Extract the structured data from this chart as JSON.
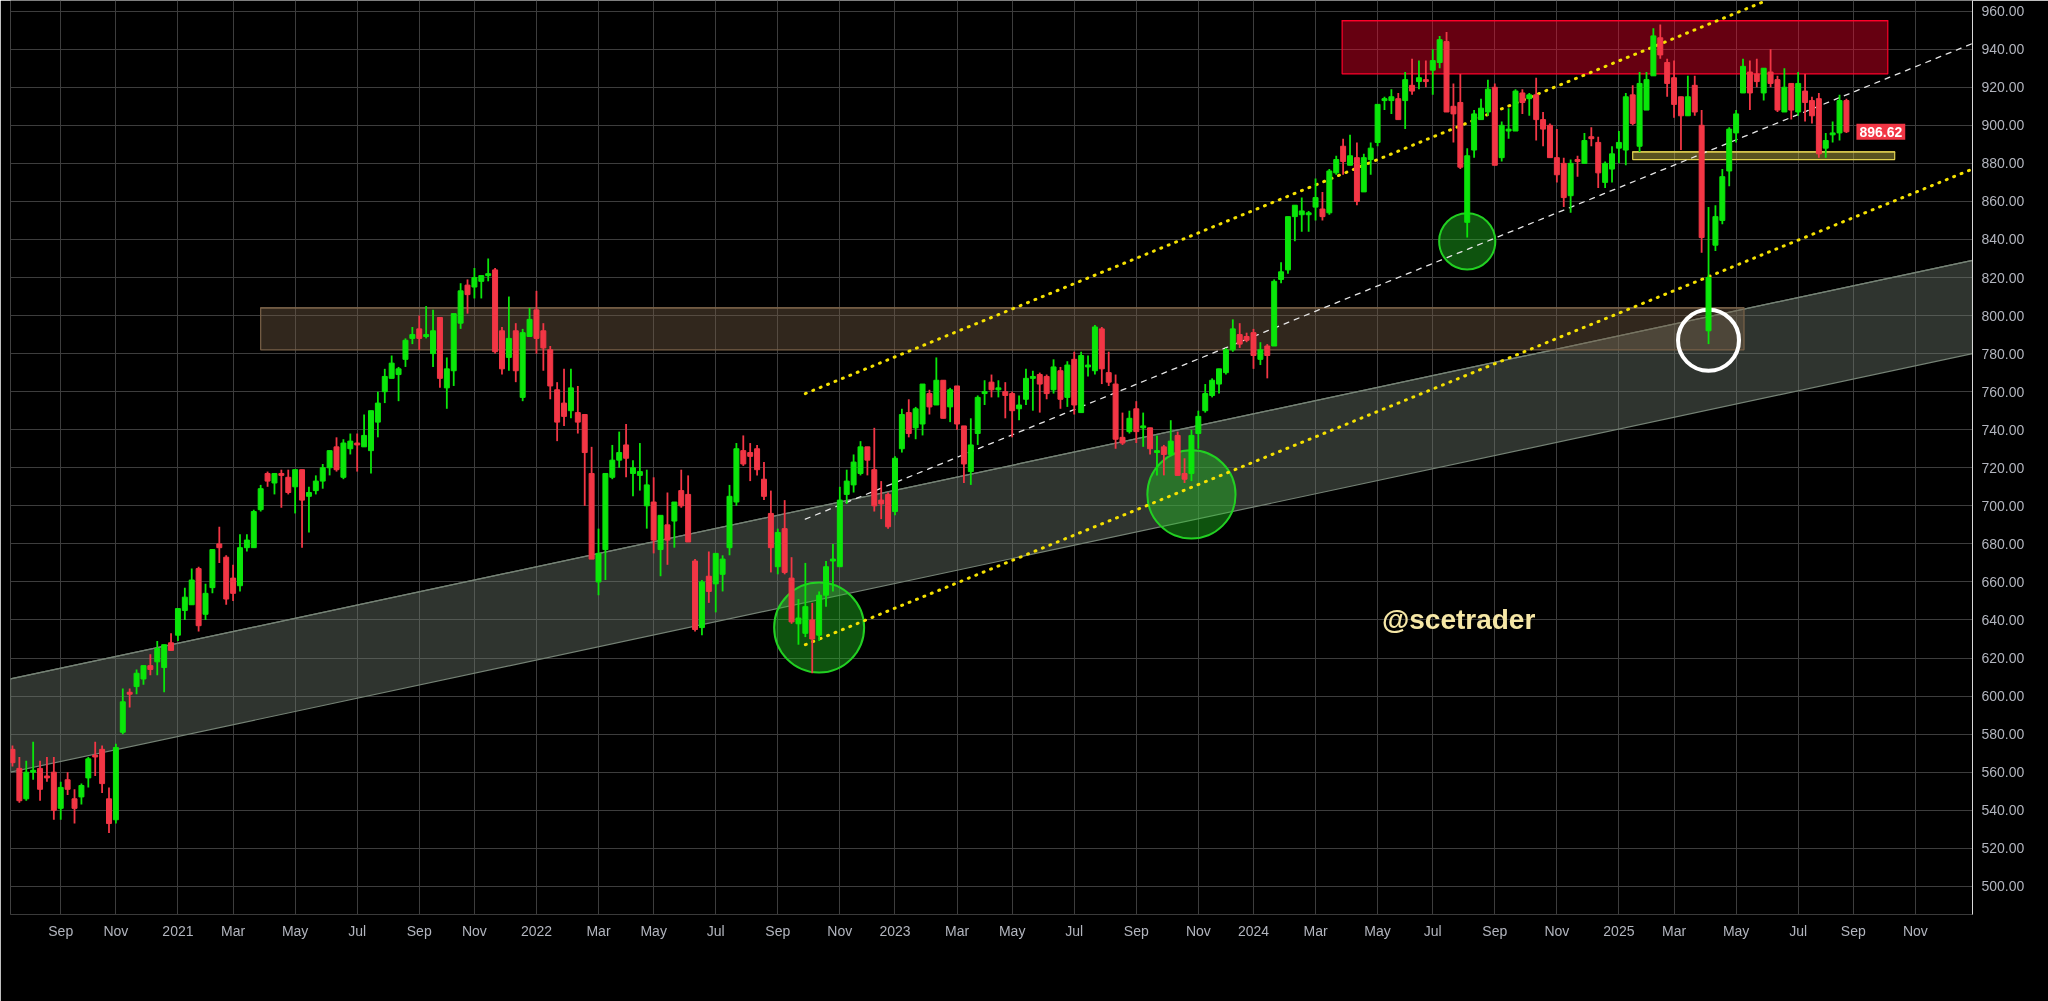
{
  "chart_data": {
    "type": "candlestick",
    "x": [
      "2020-07-20",
      "2020-07-27",
      "2020-08-03",
      "2020-08-10",
      "2020-08-17",
      "2020-08-24",
      "2020-08-31",
      "2020-09-07",
      "2020-09-14",
      "2020-09-21",
      "2020-09-28",
      "2020-10-05",
      "2020-10-12",
      "2020-10-19",
      "2020-10-26",
      "2020-11-02",
      "2020-11-09",
      "2020-11-16",
      "2020-11-23",
      "2020-11-30",
      "2020-12-07",
      "2020-12-14",
      "2020-12-21",
      "2020-12-28",
      "2021-01-04",
      "2021-01-11",
      "2021-01-18",
      "2021-01-25",
      "2021-02-01",
      "2021-02-08",
      "2021-02-15",
      "2021-02-22",
      "2021-03-01",
      "2021-03-08",
      "2021-03-15",
      "2021-03-22",
      "2021-03-29",
      "2021-04-05",
      "2021-04-12",
      "2021-04-19",
      "2021-04-26",
      "2021-05-03",
      "2021-05-10",
      "2021-05-17",
      "2021-05-24",
      "2021-05-31",
      "2021-06-07",
      "2021-06-14",
      "2021-06-21",
      "2021-06-28",
      "2021-07-05",
      "2021-07-12",
      "2021-07-19",
      "2021-07-26",
      "2021-08-02",
      "2021-08-09",
      "2021-08-16",
      "2021-08-23",
      "2021-08-30",
      "2021-09-06",
      "2021-09-13",
      "2021-09-20",
      "2021-09-27",
      "2021-10-04",
      "2021-10-11",
      "2021-10-18",
      "2021-10-25",
      "2021-11-01",
      "2021-11-08",
      "2021-11-15",
      "2021-11-22",
      "2021-11-29",
      "2021-12-06",
      "2021-12-13",
      "2021-12-20",
      "2021-12-27",
      "2022-01-03",
      "2022-01-10",
      "2022-01-17",
      "2022-01-24",
      "2022-01-31",
      "2022-02-07",
      "2022-02-14",
      "2022-02-21",
      "2022-02-28",
      "2022-03-07",
      "2022-03-14",
      "2022-03-21",
      "2022-03-28",
      "2022-04-04",
      "2022-04-11",
      "2022-04-18",
      "2022-04-25",
      "2022-05-02",
      "2022-05-09",
      "2022-05-16",
      "2022-05-23",
      "2022-05-30",
      "2022-06-06",
      "2022-06-13",
      "2022-06-20",
      "2022-06-27",
      "2022-07-04",
      "2022-07-11",
      "2022-07-18",
      "2022-07-25",
      "2022-08-01",
      "2022-08-08",
      "2022-08-15",
      "2022-08-22",
      "2022-08-29",
      "2022-09-05",
      "2022-09-12",
      "2022-09-19",
      "2022-09-26",
      "2022-10-03",
      "2022-10-10",
      "2022-10-17",
      "2022-10-24",
      "2022-10-31",
      "2022-11-07",
      "2022-11-14",
      "2022-11-21",
      "2022-11-28",
      "2022-12-05",
      "2022-12-12",
      "2022-12-19",
      "2022-12-26",
      "2023-01-02",
      "2023-01-09",
      "2023-01-16",
      "2023-01-23",
      "2023-01-30",
      "2023-02-06",
      "2023-02-13",
      "2023-02-20",
      "2023-02-27",
      "2023-03-06",
      "2023-03-13",
      "2023-03-20",
      "2023-03-27",
      "2023-04-03",
      "2023-04-10",
      "2023-04-17",
      "2023-04-24",
      "2023-05-01",
      "2023-05-08",
      "2023-05-15",
      "2023-05-22",
      "2023-05-29",
      "2023-06-05",
      "2023-06-12",
      "2023-06-19",
      "2023-06-26",
      "2023-07-03",
      "2023-07-10",
      "2023-07-17",
      "2023-07-24",
      "2023-07-31",
      "2023-08-07",
      "2023-08-14",
      "2023-08-21",
      "2023-08-28",
      "2023-09-04",
      "2023-09-11",
      "2023-09-18",
      "2023-09-25",
      "2023-10-02",
      "2023-10-09",
      "2023-10-16",
      "2023-10-23",
      "2023-10-30",
      "2023-11-06",
      "2023-11-13",
      "2023-11-20",
      "2023-11-27",
      "2023-12-04",
      "2023-12-11",
      "2023-12-18",
      "2023-12-25",
      "2024-01-01",
      "2024-01-08",
      "2024-01-15",
      "2024-01-22",
      "2024-01-29",
      "2024-02-05",
      "2024-02-12",
      "2024-02-19",
      "2024-02-26",
      "2024-03-04",
      "2024-03-11",
      "2024-03-18",
      "2024-03-25",
      "2024-04-01",
      "2024-04-08",
      "2024-04-15",
      "2024-04-22",
      "2024-04-29",
      "2024-05-06",
      "2024-05-13",
      "2024-05-20",
      "2024-05-27",
      "2024-06-03",
      "2024-06-10",
      "2024-06-17",
      "2024-06-24",
      "2024-07-01",
      "2024-07-08",
      "2024-07-15",
      "2024-07-22",
      "2024-07-29",
      "2024-08-05",
      "2024-08-12",
      "2024-08-19",
      "2024-08-26",
      "2024-09-02",
      "2024-09-09",
      "2024-09-16",
      "2024-09-23",
      "2024-09-30",
      "2024-10-07",
      "2024-10-14",
      "2024-10-21",
      "2024-10-28",
      "2024-11-04",
      "2024-11-11",
      "2024-11-18",
      "2024-11-25",
      "2024-12-02",
      "2024-12-09",
      "2024-12-16",
      "2024-12-23",
      "2024-12-30",
      "2025-01-06",
      "2025-01-13",
      "2025-01-20",
      "2025-01-27",
      "2025-02-03",
      "2025-02-10",
      "2025-02-17",
      "2025-02-24",
      "2025-03-03",
      "2025-03-10",
      "2025-03-17",
      "2025-03-24",
      "2025-03-31",
      "2025-04-07",
      "2025-04-14",
      "2025-04-21",
      "2025-04-28",
      "2025-05-05",
      "2025-05-12",
      "2025-05-19",
      "2025-05-26",
      "2025-06-02",
      "2025-06-09",
      "2025-06-16",
      "2025-06-23",
      "2025-06-30",
      "2025-07-07",
      "2025-07-14",
      "2025-07-21",
      "2025-07-28",
      "2025-08-04",
      "2025-08-11",
      "2025-08-18",
      "2025-08-25"
    ],
    "ohlc": [
      [
        572,
        574,
        563,
        565
      ],
      [
        562,
        568,
        544,
        545
      ],
      [
        546,
        566,
        545,
        560
      ],
      [
        560,
        576,
        556,
        561
      ],
      [
        562,
        566,
        545,
        551
      ],
      [
        558,
        568,
        555,
        557
      ],
      [
        560,
        568,
        535,
        540
      ],
      [
        541,
        555,
        535,
        552
      ],
      [
        556,
        560,
        548,
        551
      ],
      [
        546,
        551,
        533,
        541
      ],
      [
        547,
        554,
        543,
        553
      ],
      [
        557,
        568,
        552,
        567
      ],
      [
        569,
        576,
        558,
        568
      ],
      [
        572,
        574,
        549,
        554
      ],
      [
        546,
        552,
        528,
        533
      ],
      [
        535,
        575,
        533,
        573
      ],
      [
        581,
        604,
        580,
        597
      ],
      [
        602,
        604,
        594,
        601
      ],
      [
        605,
        614,
        601,
        612
      ],
      [
        609,
        616,
        606,
        616
      ],
      [
        616,
        622,
        611,
        614
      ],
      [
        618,
        629,
        611,
        625
      ],
      [
        615,
        627,
        602,
        627
      ],
      [
        628,
        633,
        624,
        624
      ],
      [
        632,
        646,
        629,
        646
      ],
      [
        645,
        657,
        640,
        652
      ],
      [
        648,
        667,
        648,
        661
      ],
      [
        667,
        668,
        634,
        637
      ],
      [
        643,
        659,
        640,
        654
      ],
      [
        657,
        677,
        654,
        677
      ],
      [
        680,
        689,
        670,
        678
      ],
      [
        673,
        674,
        648,
        651
      ],
      [
        662,
        669,
        650,
        654
      ],
      [
        658,
        685,
        655,
        678
      ],
      [
        678,
        685,
        676,
        682
      ],
      [
        678,
        698,
        678,
        697
      ],
      [
        698,
        711,
        697,
        709
      ],
      [
        717,
        718,
        710,
        713
      ],
      [
        712,
        717,
        706,
        717
      ],
      [
        717,
        719,
        699,
        716
      ],
      [
        715,
        719,
        706,
        707
      ],
      [
        710,
        719,
        696,
        719
      ],
      [
        719,
        719,
        678,
        703
      ],
      [
        705,
        710,
        686,
        707
      ],
      [
        708,
        716,
        706,
        713
      ],
      [
        713,
        722,
        709,
        720
      ],
      [
        720,
        729,
        716,
        729
      ],
      [
        731,
        736,
        718,
        719
      ],
      [
        715,
        735,
        714,
        733
      ],
      [
        730,
        738,
        727,
        734
      ],
      [
        733,
        738,
        718,
        732
      ],
      [
        731,
        748,
        731,
        737
      ],
      [
        729,
        750,
        717,
        750
      ],
      [
        744,
        760,
        736,
        754
      ],
      [
        760,
        772,
        754,
        768
      ],
      [
        767,
        779,
        767,
        775
      ],
      [
        769,
        773,
        755,
        772
      ],
      [
        777,
        788,
        773,
        787
      ],
      [
        788,
        794,
        785,
        790
      ],
      [
        793,
        800,
        782,
        788
      ],
      [
        789,
        805,
        788,
        790
      ],
      [
        780,
        803,
        773,
        792
      ],
      [
        799,
        799,
        762,
        767
      ],
      [
        762,
        778,
        751,
        772
      ],
      [
        771,
        801,
        763,
        801
      ],
      [
        796,
        817,
        793,
        813
      ],
      [
        816,
        819,
        801,
        811
      ],
      [
        815,
        825,
        809,
        820
      ],
      [
        818,
        821,
        809,
        821
      ],
      [
        821,
        830,
        818,
        822
      ],
      [
        824,
        825,
        780,
        781
      ],
      [
        792,
        794,
        769,
        772
      ],
      [
        778,
        810,
        771,
        788
      ],
      [
        792,
        796,
        765,
        771
      ],
      [
        757,
        793,
        755,
        791
      ],
      [
        789,
        804,
        789,
        798
      ],
      [
        803,
        813,
        780,
        788
      ],
      [
        792,
        796,
        771,
        783
      ],
      [
        782,
        784,
        756,
        763
      ],
      [
        761,
        765,
        734,
        744
      ],
      [
        754,
        772,
        742,
        747
      ],
      [
        750,
        772,
        746,
        762
      ],
      [
        749,
        763,
        738,
        744
      ],
      [
        748,
        748,
        700,
        728
      ],
      [
        717,
        731,
        672,
        672
      ],
      [
        660,
        688,
        653,
        675
      ],
      [
        677,
        717,
        661,
        717
      ],
      [
        715,
        732,
        714,
        724
      ],
      [
        724,
        739,
        720,
        728
      ],
      [
        732,
        743,
        715,
        725
      ],
      [
        717,
        724,
        705,
        720
      ],
      [
        716,
        733,
        708,
        718
      ],
      [
        700,
        719,
        688,
        711
      ],
      [
        702,
        715,
        675,
        682
      ],
      [
        677,
        695,
        663,
        695
      ],
      [
        690,
        707,
        669,
        682
      ],
      [
        692,
        702,
        678,
        702
      ],
      [
        708,
        719,
        699,
        700
      ],
      [
        706,
        716,
        681,
        681
      ],
      [
        671,
        672,
        634,
        635
      ],
      [
        636,
        661,
        632,
        660
      ],
      [
        663,
        676,
        649,
        655
      ],
      [
        659,
        675,
        644,
        675
      ],
      [
        664,
        674,
        655,
        672
      ],
      [
        678,
        711,
        674,
        705
      ],
      [
        702,
        733,
        700,
        730
      ],
      [
        729,
        737,
        721,
        722
      ],
      [
        728,
        733,
        713,
        726
      ],
      [
        730,
        732,
        716,
        719
      ],
      [
        714,
        723,
        703,
        705
      ],
      [
        696,
        708,
        665,
        678
      ],
      [
        668,
        688,
        664,
        686
      ],
      [
        688,
        703,
        664,
        665
      ],
      [
        662,
        673,
        638,
        639
      ],
      [
        638,
        651,
        627,
        641
      ],
      [
        633,
        670,
        631,
        647
      ],
      [
        640,
        649,
        612,
        630
      ],
      [
        632,
        655,
        629,
        653
      ],
      [
        653,
        671,
        647,
        668
      ],
      [
        671,
        680,
        655,
        672
      ],
      [
        668,
        710,
        668,
        703
      ],
      [
        706,
        719,
        701,
        713
      ],
      [
        711,
        727,
        707,
        723
      ],
      [
        717,
        734,
        716,
        731
      ],
      [
        731,
        731,
        716,
        724
      ],
      [
        719,
        741,
        697,
        700
      ],
      [
        703,
        713,
        693,
        701
      ],
      [
        706,
        707,
        688,
        689
      ],
      [
        697,
        726,
        695,
        725
      ],
      [
        730,
        751,
        728,
        748
      ],
      [
        749,
        756,
        736,
        738
      ],
      [
        741,
        752,
        735,
        751
      ],
      [
        743,
        764,
        737,
        764
      ],
      [
        759,
        761,
        748,
        752
      ],
      [
        753,
        778,
        753,
        766
      ],
      [
        766,
        766,
        746,
        746
      ],
      [
        752,
        762,
        744,
        761
      ],
      [
        763,
        763,
        740,
        743
      ],
      [
        742,
        742,
        712,
        722
      ],
      [
        718,
        746,
        711,
        732
      ],
      [
        738,
        758,
        732,
        757
      ],
      [
        759,
        766,
        753,
        760
      ],
      [
        765,
        769,
        757,
        761
      ],
      [
        761,
        766,
        757,
        762
      ],
      [
        760,
        765,
        746,
        758
      ],
      [
        759,
        760,
        736,
        750
      ],
      [
        751,
        758,
        745,
        753
      ],
      [
        756,
        772,
        753,
        767
      ],
      [
        767,
        771,
        750,
        768
      ],
      [
        769,
        770,
        749,
        764
      ],
      [
        768,
        769,
        756,
        759
      ],
      [
        761,
        777,
        759,
        773
      ],
      [
        771,
        773,
        751,
        756
      ],
      [
        757,
        776,
        752,
        774
      ],
      [
        777,
        781,
        748,
        753
      ],
      [
        749,
        781,
        749,
        779
      ],
      [
        773,
        779,
        768,
        774
      ],
      [
        771,
        795,
        769,
        794
      ],
      [
        793,
        794,
        764,
        772
      ],
      [
        770,
        781,
        763,
        765
      ],
      [
        764,
        769,
        730,
        735
      ],
      [
        736,
        749,
        732,
        733
      ],
      [
        739,
        750,
        738,
        746
      ],
      [
        751,
        755,
        733,
        739
      ],
      [
        741,
        749,
        731,
        742
      ],
      [
        741,
        741,
        727,
        730
      ],
      [
        728,
        737,
        716,
        729
      ],
      [
        731,
        732,
        716,
        727
      ],
      [
        727,
        745,
        727,
        734
      ],
      [
        737,
        739,
        716,
        716
      ],
      [
        717,
        725,
        712,
        714
      ],
      [
        717,
        740,
        713,
        737
      ],
      [
        738,
        750,
        730,
        747
      ],
      [
        750,
        764,
        749,
        759
      ],
      [
        758,
        767,
        757,
        766
      ],
      [
        764,
        772,
        759,
        772
      ],
      [
        770,
        783,
        769,
        782
      ],
      [
        782,
        798,
        781,
        793
      ],
      [
        790,
        796,
        783,
        785
      ],
      [
        789,
        791,
        786,
        787
      ],
      [
        791,
        793,
        772,
        779
      ],
      [
        777,
        786,
        774,
        782
      ],
      [
        784,
        785,
        767,
        779
      ],
      [
        784,
        819,
        784,
        818
      ],
      [
        819,
        828,
        817,
        823
      ],
      [
        824,
        852,
        822,
        852
      ],
      [
        852,
        858,
        839,
        858
      ],
      [
        853,
        862,
        844,
        855
      ],
      [
        853,
        855,
        844,
        854
      ],
      [
        857,
        872,
        850,
        862
      ],
      [
        856,
        865,
        850,
        852
      ],
      [
        854,
        877,
        853,
        876
      ],
      [
        875,
        884,
        874,
        882
      ],
      [
        889,
        893,
        874,
        881
      ],
      [
        879,
        895,
        879,
        884
      ],
      [
        883,
        891,
        858,
        860
      ],
      [
        865,
        885,
        865,
        883
      ],
      [
        882,
        891,
        874,
        888
      ],
      [
        891,
        911,
        889,
        911
      ],
      [
        913,
        915,
        908,
        914
      ],
      [
        913,
        919,
        906,
        915
      ],
      [
        914,
        917,
        903,
        903
      ],
      [
        913,
        928,
        898,
        924
      ],
      [
        921,
        935,
        916,
        918
      ],
      [
        923,
        934,
        919,
        925
      ],
      [
        924,
        934,
        920,
        923
      ],
      [
        929,
        940,
        916,
        934
      ],
      [
        933,
        947,
        930,
        945
      ],
      [
        944,
        949,
        907,
        907
      ],
      [
        910,
        922,
        891,
        906
      ],
      [
        912,
        927,
        877,
        878
      ],
      [
        849,
        888,
        841,
        884
      ],
      [
        887,
        908,
        883,
        906
      ],
      [
        903,
        914,
        903,
        909
      ],
      [
        907,
        924,
        905,
        919
      ],
      [
        920,
        922,
        879,
        879
      ],
      [
        883,
        902,
        881,
        900
      ],
      [
        897,
        909,
        893,
        898
      ],
      [
        897,
        919,
        897,
        918
      ],
      [
        917,
        919,
        906,
        912
      ],
      [
        914,
        917,
        905,
        916
      ],
      [
        916,
        925,
        892,
        903
      ],
      [
        903,
        907,
        889,
        898
      ],
      [
        900,
        901,
        883,
        883
      ],
      [
        883,
        898,
        870,
        874
      ],
      [
        880,
        883,
        857,
        862
      ],
      [
        863,
        882,
        854,
        880
      ],
      [
        882,
        884,
        873,
        881
      ],
      [
        880,
        896,
        880,
        892
      ],
      [
        894,
        899,
        889,
        893
      ],
      [
        891,
        894,
        867,
        875
      ],
      [
        870,
        881,
        867,
        880
      ],
      [
        877,
        889,
        870,
        885
      ],
      [
        888,
        897,
        880,
        891
      ],
      [
        887,
        917,
        879,
        915
      ],
      [
        916,
        921,
        900,
        901
      ],
      [
        889,
        928,
        886,
        922
      ],
      [
        908,
        928,
        908,
        924
      ],
      [
        926,
        951,
        926,
        947
      ],
      [
        946,
        953,
        935,
        937
      ],
      [
        933,
        935,
        915,
        922
      ],
      [
        925,
        934,
        904,
        911
      ],
      [
        915,
        915,
        887,
        905
      ],
      [
        905,
        926,
        905,
        915
      ],
      [
        921,
        926,
        905,
        907
      ],
      [
        900,
        908,
        833,
        841
      ],
      [
        792,
        857,
        785,
        820
      ],
      [
        837,
        858,
        834,
        852
      ],
      [
        850,
        877,
        848,
        873
      ],
      [
        876,
        899,
        868,
        898
      ],
      [
        896,
        908,
        891,
        906
      ],
      [
        917,
        935,
        917,
        931
      ],
      [
        928,
        934,
        908,
        917
      ],
      [
        927,
        935,
        920,
        923
      ],
      [
        917,
        930,
        913,
        930
      ],
      [
        928,
        940,
        920,
        922
      ],
      [
        924,
        926,
        907,
        908
      ],
      [
        907,
        930,
        907,
        920
      ],
      [
        922,
        922,
        903,
        908
      ],
      [
        907,
        928,
        905,
        922
      ],
      [
        918,
        927,
        902,
        912
      ],
      [
        913,
        915,
        901,
        905
      ],
      [
        914,
        917,
        883,
        885
      ],
      [
        888,
        896,
        883,
        892
      ],
      [
        895,
        902,
        891,
        896
      ],
      [
        896,
        916,
        892,
        913
      ],
      [
        913,
        914,
        896,
        896.62
      ]
    ],
    "colors": [
      "#f23645",
      "#f23645",
      "#0ae60a",
      "#0ae60a",
      "#f23645",
      "#f23645",
      "#f23645",
      "#0ae60a",
      "#f23645",
      "#f23645",
      "#0ae60a",
      "#0ae60a",
      "#f23645",
      "#f23645",
      "#f23645",
      "#0ae60a",
      "#0ae60a",
      "#f23645",
      "#0ae60a",
      "#0ae60a",
      "#f23645",
      "#0ae60a",
      "#0ae60a",
      "#f23645",
      "#0ae60a",
      "#0ae60a",
      "#0ae60a",
      "#f23645",
      "#0ae60a",
      "#0ae60a",
      "#f23645",
      "#f23645",
      "#f23645",
      "#0ae60a",
      "#0ae60a",
      "#0ae60a",
      "#0ae60a",
      "#f23645",
      "#0ae60a",
      "#f23645",
      "#f23645",
      "#0ae60a",
      "#f23645",
      "#0ae60a",
      "#0ae60a",
      "#0ae60a",
      "#0ae60a",
      "#f23645",
      "#0ae60a",
      "#0ae60a",
      "#f23645",
      "#0ae60a",
      "#0ae60a",
      "#0ae60a",
      "#0ae60a",
      "#0ae60a",
      "#0ae60a",
      "#0ae60a",
      "#0ae60a",
      "#f23645",
      "#0ae60a",
      "#0ae60a",
      "#f23645",
      "#0ae60a",
      "#0ae60a",
      "#0ae60a",
      "#f23645",
      "#0ae60a",
      "#0ae60a",
      "#0ae60a",
      "#f23645",
      "#f23645",
      "#0ae60a",
      "#f23645",
      "#0ae60a",
      "#0ae60a",
      "#f23645",
      "#f23645",
      "#f23645",
      "#f23645",
      "#f23645",
      "#0ae60a",
      "#f23645",
      "#f23645",
      "#f23645",
      "#0ae60a",
      "#0ae60a",
      "#0ae60a",
      "#0ae60a",
      "#f23645",
      "#0ae60a",
      "#0ae60a",
      "#0ae60a",
      "#f23645",
      "#0ae60a",
      "#f23645",
      "#0ae60a",
      "#f23645",
      "#f23645",
      "#f23645",
      "#0ae60a",
      "#f23645",
      "#0ae60a",
      "#0ae60a",
      "#0ae60a",
      "#0ae60a",
      "#f23645",
      "#f23645",
      "#f23645",
      "#f23645",
      "#f23645",
      "#0ae60a",
      "#f23645",
      "#f23645",
      "#0ae60a",
      "#0ae60a",
      "#f23645",
      "#0ae60a",
      "#0ae60a",
      "#0ae60a",
      "#0ae60a",
      "#0ae60a",
      "#0ae60a",
      "#0ae60a",
      "#f23645",
      "#f23645",
      "#f23645",
      "#f23645",
      "#0ae60a",
      "#0ae60a",
      "#f23645",
      "#0ae60a",
      "#0ae60a",
      "#f23645",
      "#0ae60a",
      "#f23645",
      "#0ae60a",
      "#f23645",
      "#f23645",
      "#0ae60a",
      "#0ae60a",
      "#0ae60a",
      "#f23645",
      "#0ae60a",
      "#f23645",
      "#f23645",
      "#0ae60a",
      "#0ae60a",
      "#0ae60a",
      "#f23645",
      "#f23645",
      "#0ae60a",
      "#f23645",
      "#0ae60a",
      "#f23645",
      "#0ae60a",
      "#0ae60a",
      "#0ae60a",
      "#f23645",
      "#f23645",
      "#f23645",
      "#f23645",
      "#0ae60a",
      "#f23645",
      "#0ae60a",
      "#f23645",
      "#0ae60a",
      "#f23645",
      "#0ae60a",
      "#f23645",
      "#f23645",
      "#0ae60a",
      "#0ae60a",
      "#0ae60a",
      "#0ae60a",
      "#0ae60a",
      "#0ae60a",
      "#0ae60a",
      "#f23645",
      "#f23645",
      "#f23645",
      "#0ae60a",
      "#f23645",
      "#0ae60a",
      "#0ae60a",
      "#0ae60a",
      "#0ae60a",
      "#0ae60a",
      "#0ae60a",
      "#0ae60a",
      "#f23645",
      "#0ae60a",
      "#0ae60a",
      "#f23645",
      "#0ae60a",
      "#f23645",
      "#0ae60a",
      "#0ae60a",
      "#0ae60a",
      "#0ae60a",
      "#0ae60a",
      "#f23645",
      "#0ae60a",
      "#f23645",
      "#0ae60a",
      "#f23645",
      "#0ae60a",
      "#0ae60a",
      "#f23645",
      "#f23645",
      "#f23645",
      "#0ae60a",
      "#0ae60a",
      "#0ae60a",
      "#0ae60a",
      "#f23645",
      "#0ae60a",
      "#0ae60a",
      "#0ae60a",
      "#f23645",
      "#0ae60a",
      "#f23645",
      "#f23645",
      "#f23645",
      "#f23645",
      "#f23645",
      "#0ae60a",
      "#f23645",
      "#0ae60a",
      "#f23645",
      "#f23645",
      "#0ae60a",
      "#0ae60a",
      "#0ae60a",
      "#0ae60a",
      "#f23645",
      "#0ae60a",
      "#0ae60a",
      "#0ae60a",
      "#f23645",
      "#f23645",
      "#f23645",
      "#f23645",
      "#0ae60a",
      "#f23645",
      "#f23645",
      "#0ae60a",
      "#0ae60a",
      "#0ae60a",
      "#0ae60a",
      "#0ae60a",
      "#0ae60a",
      "#f23645",
      "#f23645",
      "#0ae60a",
      "#f23645",
      "#f23645",
      "#0ae60a",
      "#f23645",
      "#0ae60a",
      "#f23645",
      "#f23645",
      "#f23645",
      "#0ae60a",
      "#0ae60a",
      "#0ae60a",
      "#f23645"
    ],
    "xlim": [
      "2020-07-18",
      "2025-12-31"
    ],
    "ylim": [
      485.2,
      965.6
    ],
    "xticks": [
      {
        "value": "2020-09-07",
        "label": "Sep"
      },
      {
        "value": "2020-11-02",
        "label": "Nov"
      },
      {
        "value": "2021-01-04",
        "label": "2021"
      },
      {
        "value": "2021-03-01",
        "label": "Mar"
      },
      {
        "value": "2021-05-03",
        "label": "May"
      },
      {
        "value": "2021-07-05",
        "label": "Jul"
      },
      {
        "value": "2021-09-06",
        "label": "Sep"
      },
      {
        "value": "2021-11-01",
        "label": "Nov"
      },
      {
        "value": "2022-01-03",
        "label": "2022"
      },
      {
        "value": "2022-03-07",
        "label": "Mar"
      },
      {
        "value": "2022-05-02",
        "label": "May"
      },
      {
        "value": "2022-07-04",
        "label": "Jul"
      },
      {
        "value": "2022-09-05",
        "label": "Sep"
      },
      {
        "value": "2022-11-07",
        "label": "Nov"
      },
      {
        "value": "2023-01-02",
        "label": "2023"
      },
      {
        "value": "2023-03-06",
        "label": "Mar"
      },
      {
        "value": "2023-05-01",
        "label": "May"
      },
      {
        "value": "2023-07-03",
        "label": "Jul"
      },
      {
        "value": "2023-09-04",
        "label": "Sep"
      },
      {
        "value": "2023-11-06",
        "label": "Nov"
      },
      {
        "value": "2024-01-01",
        "label": "2024"
      },
      {
        "value": "2024-03-04",
        "label": "Mar"
      },
      {
        "value": "2024-05-06",
        "label": "May"
      },
      {
        "value": "2024-07-01",
        "label": "Jul"
      },
      {
        "value": "2024-09-02",
        "label": "Sep"
      },
      {
        "value": "2024-11-04",
        "label": "Nov"
      },
      {
        "value": "2025-01-06",
        "label": "2025"
      },
      {
        "value": "2025-03-03",
        "label": "Mar"
      },
      {
        "value": "2025-05-05",
        "label": "May"
      },
      {
        "value": "2025-07-07",
        "label": "Jul"
      },
      {
        "value": "2025-09-01",
        "label": "Sep"
      },
      {
        "value": "2025-11-03",
        "label": "Nov"
      }
    ],
    "yticks": [
      {
        "value": 500,
        "label": "500.00"
      },
      {
        "value": 520,
        "label": "520.00"
      },
      {
        "value": 540,
        "label": "540.00"
      },
      {
        "value": 560,
        "label": "560.00"
      },
      {
        "value": 580,
        "label": "580.00"
      },
      {
        "value": 600,
        "label": "600.00"
      },
      {
        "value": 620,
        "label": "620.00"
      },
      {
        "value": 640,
        "label": "640.00"
      },
      {
        "value": 660,
        "label": "660.00"
      },
      {
        "value": 680,
        "label": "680.00"
      },
      {
        "value": 700,
        "label": "700.00"
      },
      {
        "value": 720,
        "label": "720.00"
      },
      {
        "value": 740,
        "label": "740.00"
      },
      {
        "value": 760,
        "label": "760.00"
      },
      {
        "value": 780,
        "label": "780.00"
      },
      {
        "value": 800,
        "label": "800.00"
      },
      {
        "value": 820,
        "label": "820.00"
      },
      {
        "value": 840,
        "label": "840.00"
      },
      {
        "value": 860,
        "label": "860.00"
      },
      {
        "value": 880,
        "label": "880.00"
      },
      {
        "value": 900,
        "label": "900.00"
      },
      {
        "value": 920,
        "label": "920.00"
      },
      {
        "value": 940,
        "label": "940.00"
      },
      {
        "value": 960,
        "label": "960.00"
      }
    ],
    "grid": true,
    "series": [
      {
        "type": "line",
        "x": [
          "2020-07-18",
          "2025-12-31"
        ],
        "values": [
          609,
          829
        ],
        "lower": [
          560,
          780
        ],
        "upper": [
          609,
          829
        ],
        "color": "#758275"
      },
      {
        "type": "line",
        "x": [
          "2021-03-29",
          "2025-05-13"
        ],
        "values": [
          804,
          804
        ],
        "lower": [
          782,
          782
        ],
        "upper": [
          804,
          804
        ],
        "color": "#7a6249"
      },
      {
        "type": "line",
        "x": [
          "2025-01-20",
          "2025-10-13"
        ],
        "values": [
          886,
          886
        ],
        "lower": [
          882,
          882
        ],
        "upper": [
          886,
          886
        ],
        "color": "#dfd050"
      },
      {
        "type": "line",
        "x": [
          "2024-03-31",
          "2025-10-06"
        ],
        "values": [
          955,
          955
        ],
        "lower": [
          927,
          927
        ],
        "upper": [
          955,
          955
        ],
        "color": "#ff002a"
      },
      {
        "type": "line",
        "x": [
          "2022-10-03",
          "2025-06-05"
        ],
        "values": [
          759,
          965.6
        ],
        "color": "#f5e100",
        "line_style": "dotted"
      },
      {
        "type": "line",
        "x": [
          "2022-10-03",
          "2025-12-31"
        ],
        "values": [
          627,
          877
        ],
        "color": "#f5e100",
        "line_style": "dotted"
      },
      {
        "type": "line",
        "x": [
          "2022-10-03",
          "2025-12-31"
        ],
        "values": [
          693,
          943
        ],
        "color": "#e6e6e6",
        "line_style": "dashed"
      },
      {
        "type": "bubble",
        "x": [
          "2022-10-17",
          "2023-10-30",
          "2024-08-05"
        ],
        "values": [
          636,
          706,
          839
        ],
        "sizes": [
          1,
          0.96,
          0.39
        ],
        "color": "#22d022",
        "colors": [
          "#22d022",
          "#22d022",
          "#22d022"
        ]
      },
      {
        "type": "bubble",
        "x": [
          "2025-04-07"
        ],
        "values": [
          787
        ],
        "sizes": [
          0.46
        ],
        "color": "#ffffff"
      }
    ],
    "annotations": [
      "@scetrader",
      {
        "text": "896.62",
        "x": "2025-08-25",
        "y": 896.62
      }
    ]
  }
}
